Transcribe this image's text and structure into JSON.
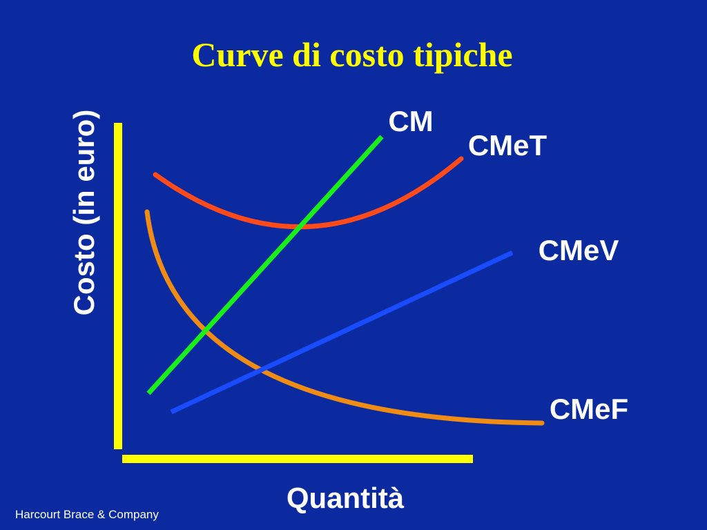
{
  "title": "Curve di costo tipiche",
  "axes": {
    "y_label": "Costo (in euro)",
    "x_label": "Quantità"
  },
  "curves": [
    {
      "label": "CM"
    },
    {
      "label": "CMeT"
    },
    {
      "label": "CMeV"
    },
    {
      "label": "CMeF"
    }
  ],
  "footer": "Harcourt Brace & Company"
}
